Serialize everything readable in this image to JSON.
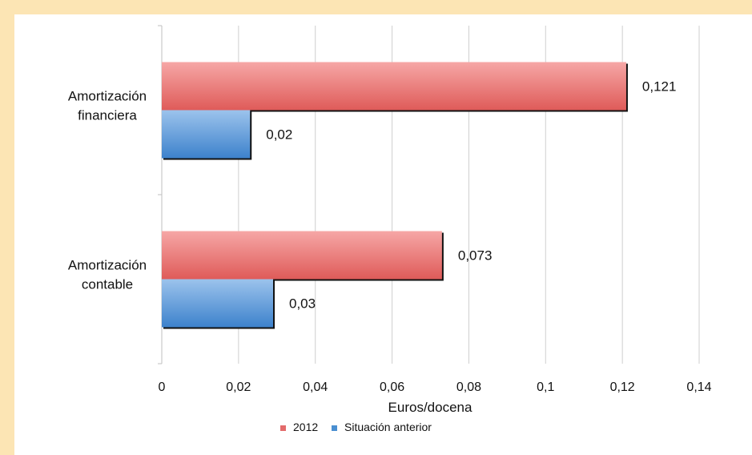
{
  "chart_data": {
    "type": "bar",
    "orientation": "horizontal",
    "categories": [
      "Amortización financiera",
      "Amortización contable"
    ],
    "category_lines": [
      [
        "Amortización",
        "financiera"
      ],
      [
        "Amortización",
        "contable"
      ]
    ],
    "series": [
      {
        "name": "2012",
        "values": [
          0.121,
          0.073
        ],
        "labels": [
          "0,121",
          "0,073"
        ],
        "color": "#e36b6b"
      },
      {
        "name": "Situación anterior",
        "values": [
          0.023,
          0.029
        ],
        "labels": [
          "0,02",
          "0,03"
        ],
        "color": "#4a8fd1"
      }
    ],
    "xlabel": "Euros/docena",
    "xlim": [
      0,
      0.14
    ],
    "ticks": [
      0,
      0.02,
      0.04,
      0.06,
      0.08,
      0.1,
      0.12,
      0.14
    ],
    "tick_labels": [
      "0",
      "0,02",
      "0,04",
      "0,06",
      "0,08",
      "0,1",
      "0,12",
      "0,14"
    ],
    "grid": true,
    "legend_position": "bottom"
  }
}
